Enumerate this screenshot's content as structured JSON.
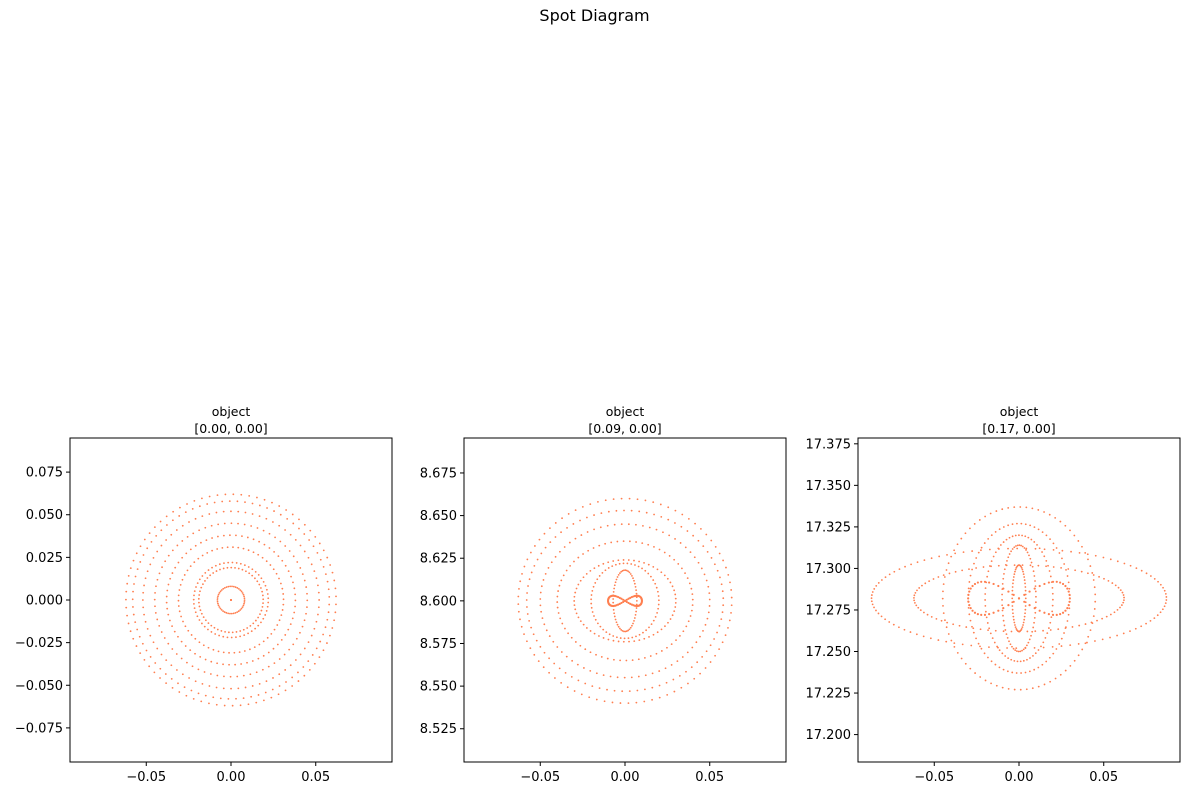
{
  "suptitle": "Spot Diagram",
  "colors": {
    "spot": "#ff7f50",
    "axes": "#000000",
    "background": "#ffffff"
  },
  "chart_data": [
    {
      "type": "scatter",
      "title_line1": "object",
      "title_line2": "[0.00, 0.00]",
      "xlim": [
        -0.095,
        0.095
      ],
      "ylim": [
        -0.095,
        0.095
      ],
      "xticks": [
        -0.05,
        0.0,
        0.05
      ],
      "xtick_labels": [
        "−0.05",
        "0.00",
        "0.05"
      ],
      "yticks": [
        -0.075,
        -0.05,
        -0.025,
        0.0,
        0.025,
        0.05,
        0.075
      ],
      "ytick_labels": [
        "−0.075",
        "−0.050",
        "−0.025",
        "0.000",
        "0.025",
        "0.050",
        "0.075"
      ],
      "spot_center": [
        0.0,
        0.0
      ],
      "rings": [
        {
          "rx": 0.0,
          "ry": 0.0
        },
        {
          "rx": 0.008,
          "ry": 0.008
        },
        {
          "rx": 0.019,
          "ry": 0.019
        },
        {
          "rx": 0.022,
          "ry": 0.022
        },
        {
          "rx": 0.031,
          "ry": 0.031
        },
        {
          "rx": 0.038,
          "ry": 0.038
        },
        {
          "rx": 0.045,
          "ry": 0.045
        },
        {
          "rx": 0.052,
          "ry": 0.052
        },
        {
          "rx": 0.058,
          "ry": 0.058
        },
        {
          "rx": 0.062,
          "ry": 0.062
        }
      ],
      "centroid_loop": null
    },
    {
      "type": "scatter",
      "title_line1": "object",
      "title_line2": "[0.09, 0.00]",
      "xlim": [
        -0.095,
        0.095
      ],
      "ylim": [
        8.5055,
        8.6955
      ],
      "xticks": [
        -0.05,
        0.0,
        0.05
      ],
      "xtick_labels": [
        "−0.05",
        "0.00",
        "0.05"
      ],
      "yticks": [
        8.525,
        8.55,
        8.575,
        8.6,
        8.625,
        8.65,
        8.675
      ],
      "ytick_labels": [
        "8.525",
        "8.550",
        "8.575",
        "8.600",
        "8.625",
        "8.650",
        "8.675"
      ],
      "spot_center": [
        0.0,
        8.6
      ],
      "rings": [
        {
          "rx": 0.007,
          "ry": 0.018
        },
        {
          "rx": 0.02,
          "ry": 0.022
        },
        {
          "rx": 0.03,
          "ry": 0.024
        },
        {
          "rx": 0.04,
          "ry": 0.035
        },
        {
          "rx": 0.05,
          "ry": 0.045
        },
        {
          "rx": 0.058,
          "ry": 0.053
        },
        {
          "rx": 0.063,
          "ry": 0.06
        }
      ],
      "centroid_loop": {
        "half_width": 0.01,
        "amplitude": 0.003
      }
    },
    {
      "type": "scatter",
      "title_line1": "object",
      "title_line2": "[0.17, 0.00]",
      "xlim": [
        -0.095,
        0.095
      ],
      "ylim": [
        17.1835,
        17.3785
      ],
      "xticks": [
        -0.05,
        0.0,
        0.05
      ],
      "xtick_labels": [
        "−0.05",
        "0.00",
        "0.05"
      ],
      "yticks": [
        17.2,
        17.225,
        17.25,
        17.275,
        17.3,
        17.325,
        17.35,
        17.375
      ],
      "ytick_labels": [
        "17.200",
        "17.225",
        "17.250",
        "17.275",
        "17.300",
        "17.325",
        "17.350",
        "17.375"
      ],
      "spot_center": [
        0.0,
        17.282
      ],
      "rings": [
        {
          "rx": 0.004,
          "ry": 0.02
        },
        {
          "rx": 0.01,
          "ry": 0.032
        },
        {
          "rx": 0.02,
          "ry": 0.038
        },
        {
          "rx": 0.03,
          "ry": 0.045
        },
        {
          "rx": 0.045,
          "ry": 0.055
        },
        {
          "rx": 0.087,
          "ry": 0.03
        },
        {
          "rx": 0.062,
          "ry": 0.02
        }
      ],
      "centroid_loop": {
        "half_width": 0.03,
        "amplitude": 0.01
      }
    }
  ]
}
